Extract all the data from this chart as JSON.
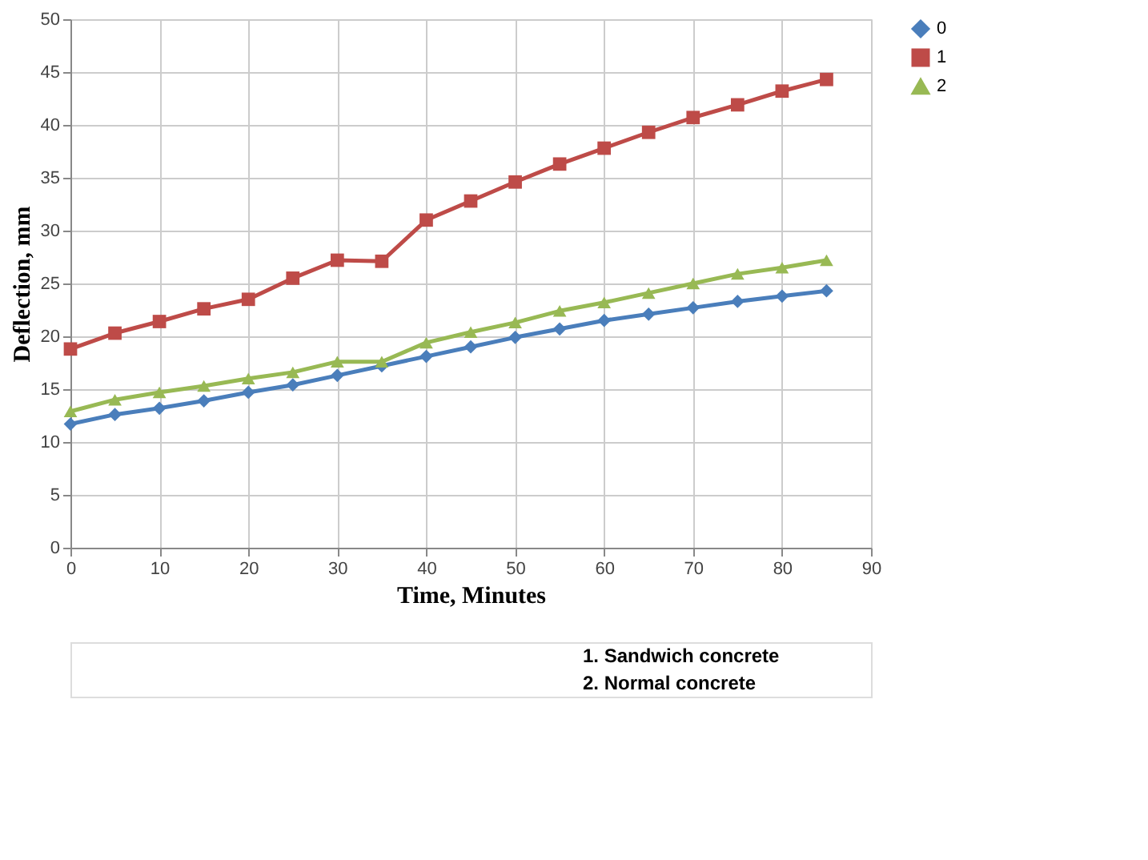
{
  "chart_data": {
    "type": "line",
    "xlabel": "Time, Minutes",
    "ylabel": "Deflection, mm",
    "x": [
      0,
      5,
      10,
      15,
      20,
      25,
      30,
      35,
      40,
      45,
      50,
      55,
      60,
      65,
      70,
      75,
      80,
      85
    ],
    "series": [
      {
        "name": "0",
        "color": "#4a7ebb",
        "marker": "diamond",
        "values": [
          11.7,
          12.6,
          13.2,
          13.9,
          14.7,
          15.4,
          16.3,
          17.2,
          18.1,
          19.0,
          19.9,
          20.7,
          21.5,
          22.1,
          22.7,
          23.3,
          23.8,
          24.3
        ]
      },
      {
        "name": "1",
        "color": "#be4b48",
        "marker": "square",
        "values": [
          18.8,
          20.3,
          21.4,
          22.6,
          23.5,
          25.5,
          27.2,
          27.1,
          31.0,
          32.8,
          34.6,
          36.3,
          37.8,
          39.3,
          40.7,
          41.9,
          43.2,
          44.3
        ]
      },
      {
        "name": "2",
        "color": "#98b954",
        "marker": "triangle",
        "values": [
          12.9,
          14.0,
          14.7,
          15.3,
          16.0,
          16.6,
          17.6,
          17.6,
          19.4,
          20.4,
          21.3,
          22.4,
          23.2,
          24.1,
          25.0,
          25.9,
          26.5,
          27.2
        ]
      }
    ],
    "xlim": [
      0,
      90
    ],
    "xticks": [
      0,
      10,
      20,
      30,
      40,
      50,
      60,
      70,
      80,
      90
    ],
    "ylim": [
      0,
      50
    ],
    "yticks": [
      0,
      5,
      10,
      15,
      20,
      25,
      30,
      35,
      40,
      45,
      50
    ],
    "grid": true,
    "legend": "right",
    "annotations": [
      "1. Sandwich concrete",
      "2. Normal concrete"
    ]
  }
}
